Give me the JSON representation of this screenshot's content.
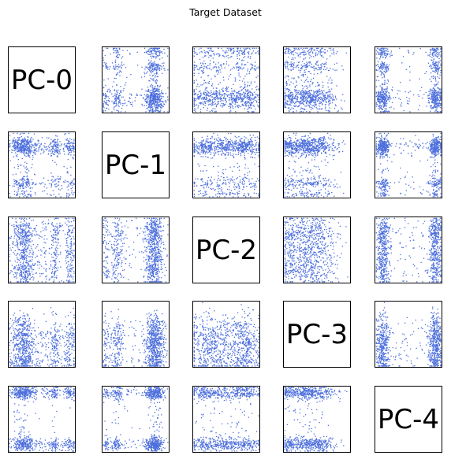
{
  "chart_data": {
    "type": "scatter",
    "title": "Target Dataset",
    "layout": "pairwise-matrix",
    "dimensions": [
      "PC-0",
      "PC-1",
      "PC-2",
      "PC-3",
      "PC-4"
    ],
    "marker_color": "#4d6fdc",
    "axes_ticks": false,
    "grid": false,
    "legend": "none",
    "point_clusters": {
      "PC-0": [
        {
          "c": 0.18,
          "w": 0.09,
          "n": 420
        },
        {
          "c": 0.26,
          "w": 0.06,
          "n": 260
        },
        {
          "c": 0.5,
          "w": 0.13,
          "n": 140
        },
        {
          "c": 0.7,
          "w": 0.04,
          "n": 160
        },
        {
          "c": 0.92,
          "w": 0.05,
          "n": 200
        }
      ],
      "PC-1": [
        {
          "c": 0.78,
          "w": 0.07,
          "n": 900
        },
        {
          "c": 0.22,
          "w": 0.05,
          "n": 220
        },
        {
          "c": 0.06,
          "w": 0.03,
          "n": 100
        },
        {
          "c": 0.4,
          "w": 0.12,
          "n": 60
        }
      ],
      "PC-2": [
        {
          "c": 0.45,
          "w": 0.25,
          "n": 800
        },
        {
          "c": 0.8,
          "w": 0.1,
          "n": 300
        },
        {
          "c": 0.15,
          "w": 0.08,
          "n": 150
        }
      ],
      "PC-3": [
        {
          "c": 0.35,
          "w": 0.17,
          "n": 900
        },
        {
          "c": 0.08,
          "w": 0.06,
          "n": 220
        },
        {
          "c": 0.62,
          "w": 0.12,
          "n": 200
        }
      ],
      "PC-4": [
        {
          "c": 0.12,
          "w": 0.05,
          "n": 500
        },
        {
          "c": 0.9,
          "w": 0.05,
          "n": 500
        },
        {
          "c": 0.5,
          "w": 0.2,
          "n": 80
        }
      ]
    }
  }
}
